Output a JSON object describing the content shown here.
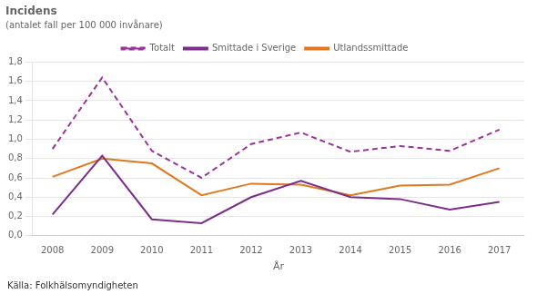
{
  "chart_data": {
    "type": "line",
    "title": "Incidens",
    "subtitle": "(antalet fall per 100 000 invånare)",
    "xlabel": "År",
    "annotations": [
      "Källa: Folkhälsomyndigheten"
    ],
    "x": [
      2008,
      2009,
      2010,
      2011,
      2012,
      2013,
      2014,
      2015,
      2016,
      2017
    ],
    "series": [
      {
        "name": "Totalt",
        "color": "#993399",
        "line_style": "dashed",
        "marker": "none",
        "values": [
          0.9,
          1.64,
          0.88,
          0.6,
          0.95,
          1.07,
          0.87,
          0.93,
          0.88,
          1.1
        ]
      },
      {
        "name": "Smittade i Sverige",
        "color": "#7b2d8b",
        "line_style": "solid",
        "marker": "none",
        "values": [
          0.22,
          0.83,
          0.17,
          0.13,
          0.4,
          0.57,
          0.4,
          0.38,
          0.27,
          0.35
        ]
      },
      {
        "name": "Utlandssmittade",
        "color": "#e07820",
        "line_style": "solid",
        "marker": "none",
        "values": [
          0.61,
          0.8,
          0.75,
          0.42,
          0.54,
          0.53,
          0.42,
          0.52,
          0.53,
          0.7
        ]
      }
    ],
    "xlim": [
      2007.6,
      2017.5
    ],
    "xticks": [
      2008,
      2009,
      2010,
      2011,
      2012,
      2013,
      2014,
      2015,
      2016,
      2017
    ],
    "ylim": [
      0.0,
      1.8
    ],
    "yticks": [
      {
        "value": 0.0,
        "label": "0,0"
      },
      {
        "value": 0.2,
        "label": "0,2"
      },
      {
        "value": 0.4,
        "label": "0,4"
      },
      {
        "value": 0.6,
        "label": "0,6"
      },
      {
        "value": 0.8,
        "label": "0,8"
      },
      {
        "value": 1.0,
        "label": "1,0"
      },
      {
        "value": 1.2,
        "label": "1,2"
      },
      {
        "value": 1.4,
        "label": "1,4"
      },
      {
        "value": 1.6,
        "label": "1,6"
      },
      {
        "value": 1.8,
        "label": "1,8"
      }
    ],
    "grid": "y",
    "legend": "top"
  }
}
